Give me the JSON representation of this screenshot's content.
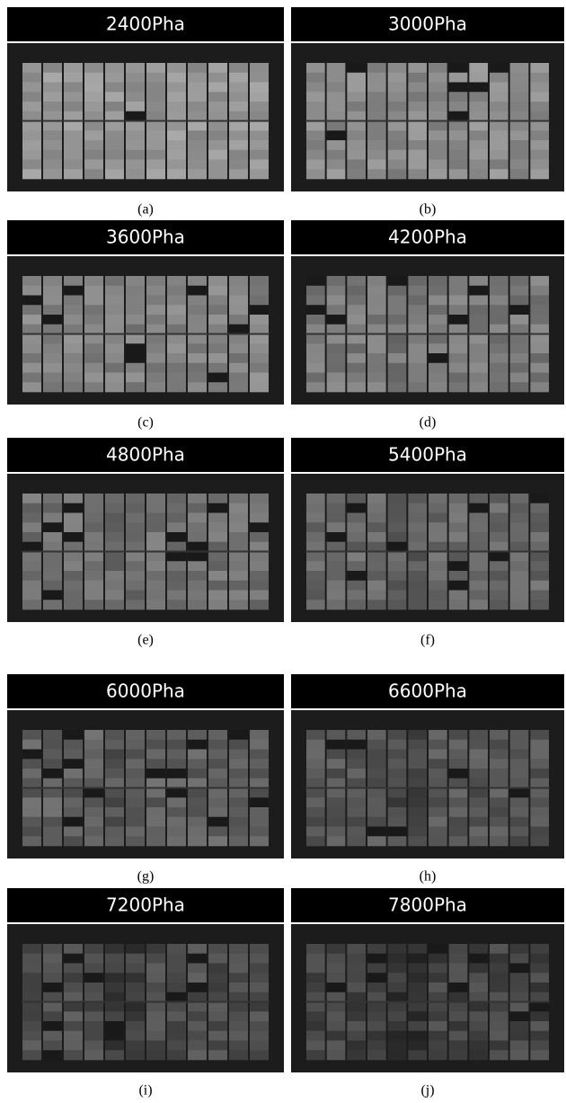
{
  "panels": [
    {
      "title": "2400Pha",
      "caption": "(a)"
    },
    {
      "title": "3000Pha",
      "caption": "(b)"
    },
    {
      "title": "3600Pha",
      "caption": "(c)"
    },
    {
      "title": "4200Pha",
      "caption": "(d)"
    },
    {
      "title": "4800Pha",
      "caption": "(e)"
    },
    {
      "title": "5400Pha",
      "caption": "(f)"
    },
    {
      "title": "6000Pha",
      "caption": "(g)"
    },
    {
      "title": "6600Pha",
      "caption": "(h)"
    },
    {
      "title": "7200Pha",
      "caption": "(i)"
    },
    {
      "title": "7800Pha",
      "caption": "(j)"
    }
  ]
}
